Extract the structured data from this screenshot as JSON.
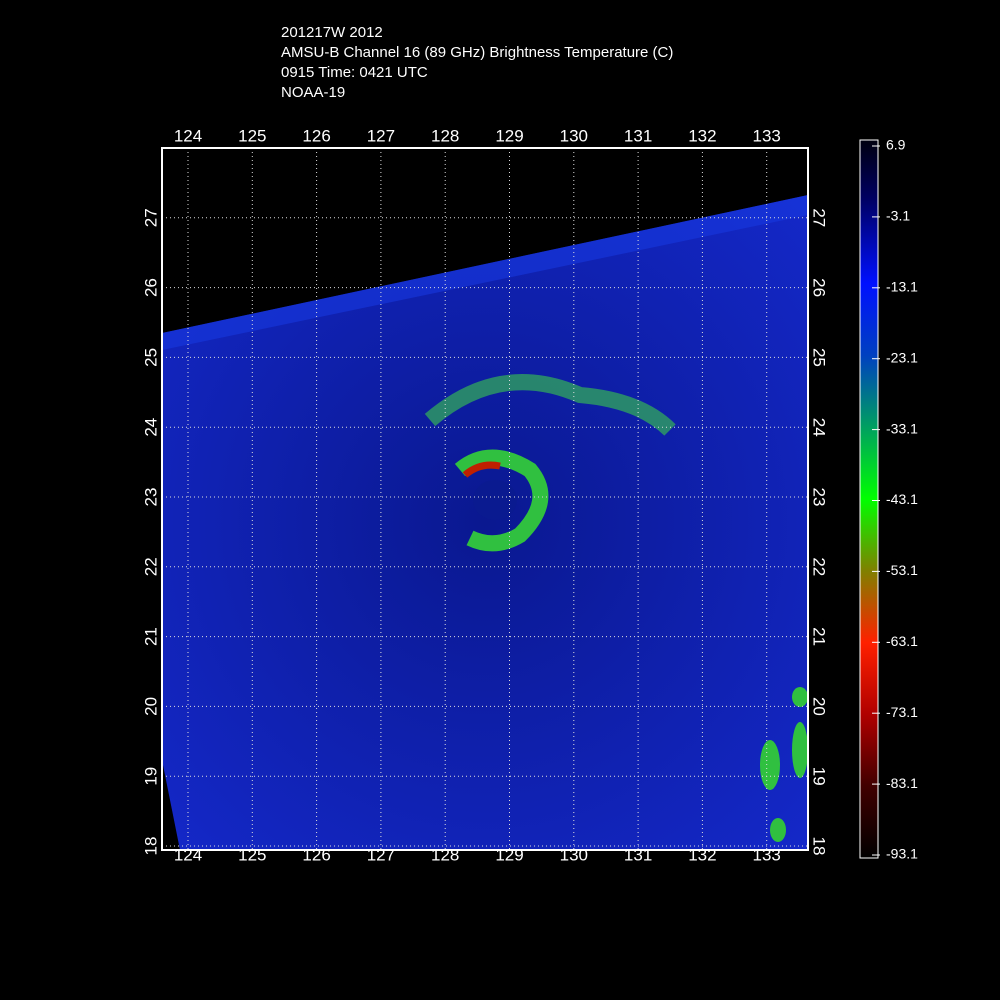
{
  "header": {
    "lines": [
      "201217W 2012",
      "AMSU-B Channel 16 (89 GHz) Brightness Temperature (C)",
      "0915 Time: 0421 UTC",
      "NOAA-19"
    ]
  },
  "map": {
    "lon_labels": [
      "124",
      "125",
      "126",
      "127",
      "128",
      "129",
      "130",
      "131",
      "132",
      "133"
    ],
    "lat_labels": [
      "18",
      "19",
      "20",
      "21",
      "22",
      "23",
      "24",
      "25",
      "26",
      "27"
    ]
  },
  "colorbar": {
    "labels": [
      "6.9",
      "-3.1",
      "-13.1",
      "-23.1",
      "-33.1",
      "-43.1",
      "-53.1",
      "-63.1",
      "-73.1",
      "-83.1",
      "-93.1"
    ]
  }
}
